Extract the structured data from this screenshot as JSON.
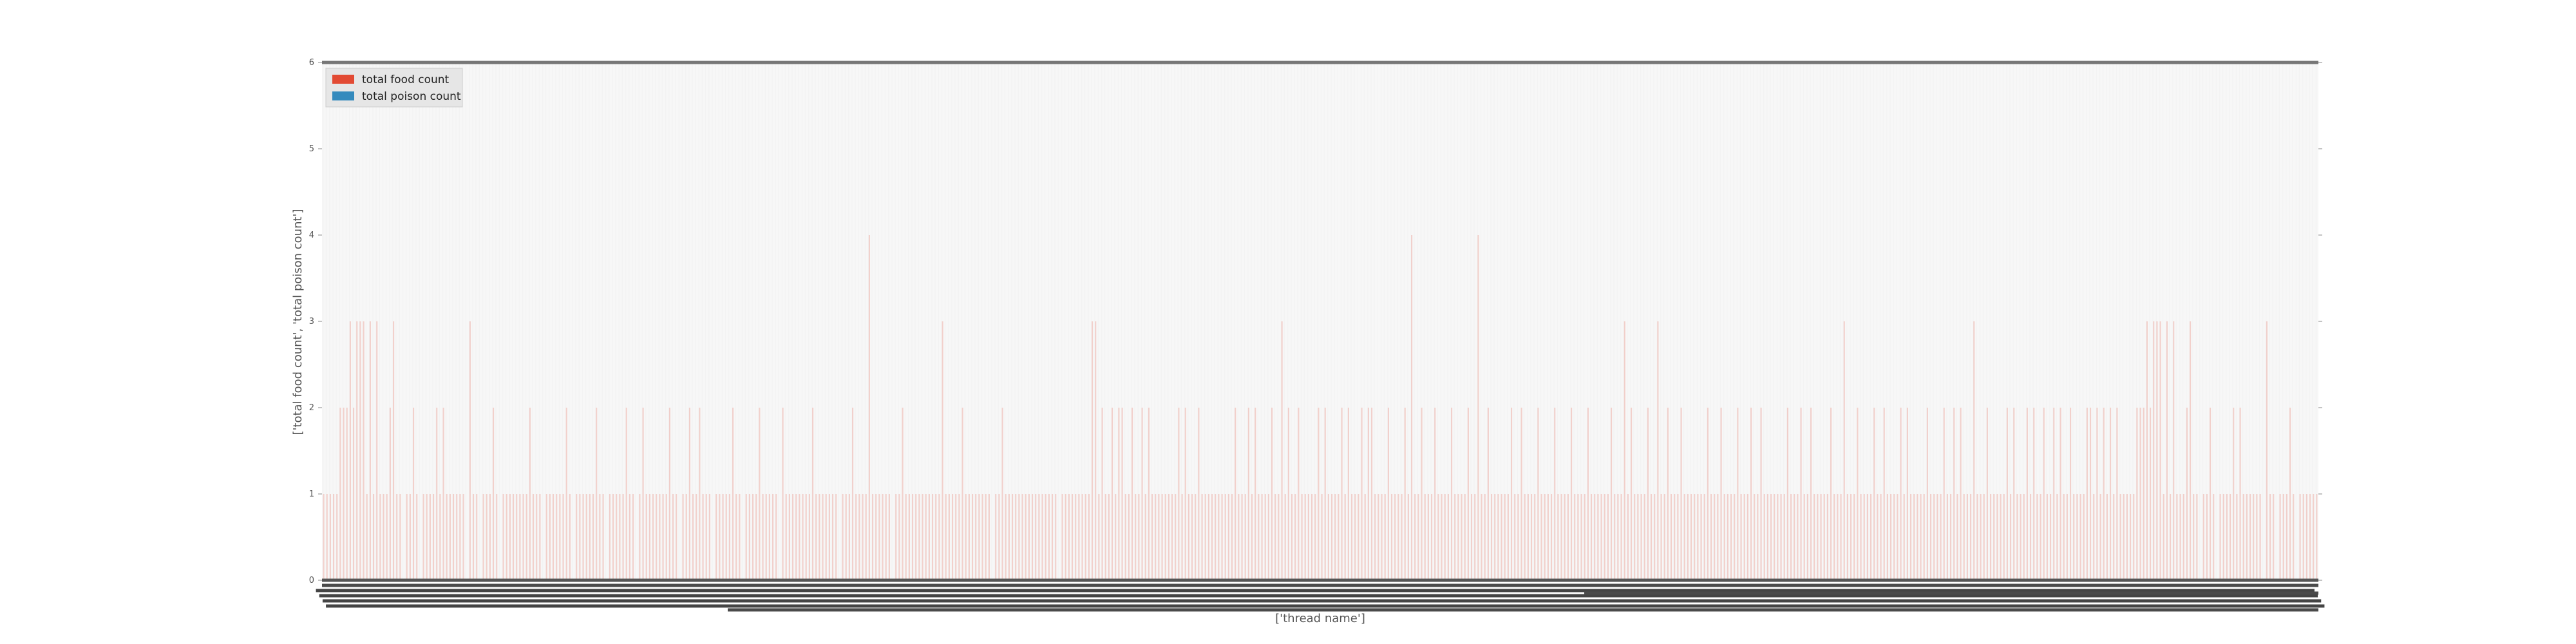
{
  "chart_data": {
    "type": "bar",
    "stacked": false,
    "xlabel": "['thread name']",
    "ylabel": "['total food count', 'total poison count']",
    "ylim": [
      0,
      6
    ],
    "yticks": [
      "0",
      "1",
      "2",
      "3",
      "4",
      "5",
      "6"
    ],
    "grid": false,
    "legend_position": "top-left",
    "x_tick_labels_overlapping": true,
    "category_count": 600,
    "series": [
      {
        "name": "total food count",
        "color": "#e24a33",
        "values": [
          1,
          1,
          1,
          1,
          1,
          2,
          2,
          2,
          3,
          2,
          3,
          3,
          3,
          1,
          3,
          1,
          3,
          1,
          1,
          1,
          2,
          3,
          1,
          1,
          0,
          1,
          1,
          2,
          1,
          0,
          1,
          1,
          1,
          1,
          2,
          1,
          2,
          1,
          1,
          1,
          1,
          1,
          1,
          0,
          3,
          1,
          1,
          0,
          1,
          1,
          1,
          2,
          1,
          0,
          1,
          1,
          1,
          1,
          1,
          1,
          1,
          1,
          2,
          1,
          1,
          1,
          0,
          1,
          1,
          1,
          1,
          1,
          1,
          2,
          1,
          0,
          1,
          1,
          1,
          1,
          1,
          1,
          2,
          1,
          1,
          0,
          1,
          1,
          1,
          1,
          1,
          2,
          1,
          1,
          0,
          1,
          2,
          1,
          1,
          1,
          1,
          1,
          1,
          1,
          2,
          1,
          1,
          0,
          1,
          1,
          2,
          1,
          1,
          2,
          1,
          1,
          1,
          0,
          1,
          1,
          1,
          1,
          1,
          2,
          1,
          1,
          0,
          1,
          1,
          1,
          1,
          2,
          1,
          1,
          1,
          1,
          1,
          0,
          2,
          1,
          1,
          1,
          1,
          1,
          1,
          1,
          1,
          2,
          1,
          1,
          1,
          1,
          1,
          1,
          1,
          0,
          1,
          1,
          1,
          2,
          1,
          1,
          1,
          1,
          4,
          1,
          1,
          1,
          1,
          1,
          1,
          0,
          1,
          1,
          2,
          1,
          1,
          1,
          1,
          1,
          1,
          1,
          1,
          1,
          1,
          1,
          3,
          1,
          1,
          1,
          1,
          1,
          2,
          1,
          1,
          1,
          1,
          1,
          1,
          1,
          1,
          0,
          1,
          1,
          2,
          1,
          1,
          1,
          1,
          1,
          1,
          1,
          1,
          1,
          1,
          1,
          1,
          1,
          1,
          1,
          1,
          0,
          1,
          1,
          1,
          1,
          1,
          1,
          1,
          1,
          1,
          3,
          3,
          1,
          2,
          1,
          1,
          2,
          1,
          2,
          2,
          1,
          1,
          2,
          1,
          1,
          2,
          1,
          2,
          1,
          1,
          1,
          1,
          1,
          1,
          1,
          1,
          2,
          1,
          2,
          1,
          1,
          1,
          2,
          1,
          1,
          1,
          1,
          1,
          1,
          1,
          1,
          1,
          1,
          2,
          1,
          1,
          1,
          2,
          1,
          2,
          1,
          1,
          1,
          1,
          2,
          1,
          1,
          3,
          1,
          2,
          1,
          1,
          2,
          1,
          1,
          1,
          1,
          1,
          2,
          1,
          2,
          1,
          1,
          1,
          1,
          2,
          1,
          2,
          1,
          1,
          1,
          2,
          1,
          2,
          2,
          1,
          1,
          1,
          1,
          2,
          1,
          1,
          1,
          1,
          2,
          1,
          4,
          1,
          1,
          2,
          1,
          1,
          1,
          2,
          1,
          1,
          1,
          1,
          2,
          1,
          1,
          1,
          1,
          2,
          1,
          1,
          4,
          1,
          1,
          2,
          1,
          1,
          1,
          1,
          1,
          1,
          2,
          1,
          1,
          2,
          1,
          1,
          1,
          1,
          2,
          1,
          1,
          1,
          1,
          2,
          1,
          1,
          1,
          1,
          2,
          1,
          1,
          1,
          1,
          2,
          1,
          1,
          1,
          1,
          1,
          1,
          2,
          1,
          1,
          1,
          3,
          1,
          2,
          1,
          1,
          1,
          1,
          2,
          1,
          1,
          3,
          1,
          1,
          2,
          1,
          1,
          1,
          2,
          1,
          1,
          1,
          1,
          1,
          1,
          1,
          2,
          1,
          1,
          1,
          2,
          1,
          1,
          1,
          1,
          2,
          1,
          1,
          1,
          2,
          1,
          1,
          2,
          1,
          1,
          1,
          1,
          1,
          1,
          1,
          2,
          1,
          1,
          1,
          2,
          1,
          1,
          2,
          1,
          1,
          1,
          1,
          1,
          2,
          1,
          1,
          1,
          3,
          1,
          1,
          1,
          2,
          1,
          1,
          1,
          1,
          2,
          1,
          1,
          2,
          1,
          1,
          1,
          1,
          2,
          1,
          2,
          1,
          1,
          1,
          1,
          1,
          2,
          1,
          1,
          1,
          1,
          2,
          1,
          1,
          2,
          1,
          2,
          1,
          1,
          1,
          3,
          1,
          1,
          1,
          2,
          1,
          1,
          1,
          1,
          1,
          2,
          1,
          2,
          1,
          1,
          1,
          2,
          1,
          2,
          1,
          1,
          2,
          1,
          1,
          2,
          1,
          2,
          1,
          1,
          2,
          1,
          1,
          1,
          1,
          2,
          2,
          1,
          2,
          1,
          2,
          1,
          2,
          1,
          2
        ],
        "last_pad": true
      },
      {
        "name": "total poison count",
        "color": "#348abd",
        "values_note": "",
        "values": []
      }
    ]
  }
}
